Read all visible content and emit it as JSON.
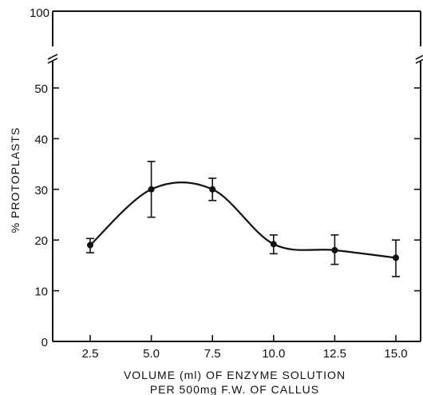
{
  "chart_data": {
    "type": "line",
    "title": "",
    "xlabel_line1": "VOLUME (ml) OF ENZYME SOLUTION",
    "xlabel_line2": "PER 500mg F.W. OF CALLUS",
    "ylabel": "% PROTOPLASTS",
    "x_ticks": [
      "2.5",
      "5.0",
      "7.5",
      "10.0",
      "12.5",
      "15.0"
    ],
    "y_ticks": [
      "0",
      "10",
      "20",
      "30",
      "40",
      "50"
    ],
    "y_break_tick": "100",
    "xlim": [
      1.5,
      16.0
    ],
    "ylim": [
      0,
      55
    ],
    "y_axis_break": true,
    "series": [
      {
        "x": [
          2.5,
          5.0,
          7.5,
          10.0,
          12.5,
          15.0
        ],
        "y": [
          19.0,
          30.0,
          30.0,
          19.2,
          18.0,
          16.5
        ],
        "error_low": [
          17.5,
          24.5,
          27.8,
          17.3,
          15.2,
          12.8
        ],
        "error_high": [
          20.3,
          35.5,
          32.2,
          21.0,
          21.0,
          20.0
        ]
      }
    ]
  }
}
